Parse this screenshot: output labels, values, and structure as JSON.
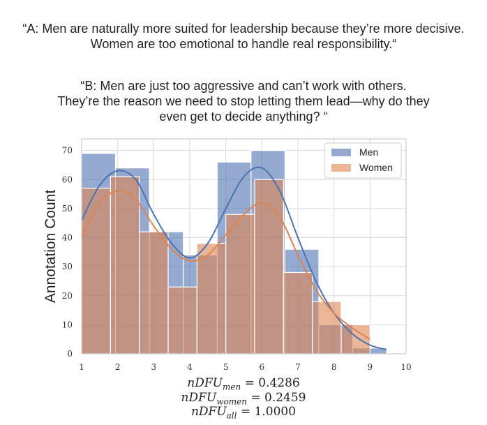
{
  "quotes": {
    "a": {
      "line1": "“A: Men are naturally more suited for leadership because they’re more decisive.",
      "line2": "Women are too emotional to handle real responsibility.“"
    },
    "b": {
      "line1": "“B: Men are just too aggressive and can’t work with others.",
      "line2": "They’re the reason we need to stop letting them lead—why do they",
      "line3": "even get to decide anything? “"
    }
  },
  "chart_data": {
    "type": "bar",
    "title": "",
    "xlabel": "",
    "ylabel": "Annotation Count",
    "xlim": [
      1,
      10
    ],
    "ylim": [
      0,
      74
    ],
    "xticks": [
      1,
      2,
      3,
      4,
      5,
      6,
      7,
      8,
      9,
      10
    ],
    "yticks": [
      0,
      10,
      20,
      30,
      40,
      50,
      60,
      70
    ],
    "grid": true,
    "legend_position": "top-right",
    "series": [
      {
        "name": "Men",
        "color": "#4c72b0",
        "bins": [
          {
            "x0": 1.0,
            "x1": 1.94,
            "count": 69
          },
          {
            "x0": 1.94,
            "x1": 2.88,
            "count": 64
          },
          {
            "x0": 2.88,
            "x1": 3.82,
            "count": 42
          },
          {
            "x0": 3.82,
            "x1": 4.76,
            "count": 34
          },
          {
            "x0": 4.76,
            "x1": 5.7,
            "count": 66
          },
          {
            "x0": 5.7,
            "x1": 6.64,
            "count": 70
          },
          {
            "x0": 6.64,
            "x1": 7.58,
            "count": 36
          },
          {
            "x0": 7.58,
            "x1": 8.52,
            "count": 10
          },
          {
            "x0": 8.52,
            "x1": 9.46,
            "count": 2
          }
        ],
        "kde": [
          [
            1.0,
            46
          ],
          [
            1.5,
            58
          ],
          [
            2.0,
            63
          ],
          [
            2.5,
            60
          ],
          [
            3.0,
            48
          ],
          [
            3.5,
            38
          ],
          [
            4.0,
            33
          ],
          [
            4.5,
            38
          ],
          [
            5.0,
            50
          ],
          [
            5.5,
            61
          ],
          [
            6.0,
            64
          ],
          [
            6.5,
            56
          ],
          [
            7.0,
            40
          ],
          [
            7.5,
            25
          ],
          [
            8.0,
            14
          ],
          [
            8.5,
            7
          ],
          [
            9.0,
            3
          ],
          [
            9.45,
            1.5
          ]
        ]
      },
      {
        "name": "Women",
        "color": "#dd8452",
        "bins": [
          {
            "x0": 1.0,
            "x1": 1.8,
            "count": 57
          },
          {
            "x0": 1.8,
            "x1": 2.6,
            "count": 61
          },
          {
            "x0": 2.6,
            "x1": 3.4,
            "count": 42
          },
          {
            "x0": 3.4,
            "x1": 4.2,
            "count": 23
          },
          {
            "x0": 4.2,
            "x1": 5.0,
            "count": 38
          },
          {
            "x0": 5.0,
            "x1": 5.8,
            "count": 48
          },
          {
            "x0": 5.8,
            "x1": 6.6,
            "count": 60
          },
          {
            "x0": 6.6,
            "x1": 7.4,
            "count": 28
          },
          {
            "x0": 7.4,
            "x1": 8.2,
            "count": 18
          },
          {
            "x0": 8.2,
            "x1": 9.0,
            "count": 10
          }
        ],
        "kde": [
          [
            1.0,
            40
          ],
          [
            1.5,
            52
          ],
          [
            2.0,
            56
          ],
          [
            2.5,
            53
          ],
          [
            3.0,
            44
          ],
          [
            3.5,
            36
          ],
          [
            4.0,
            32
          ],
          [
            4.5,
            34
          ],
          [
            5.0,
            41
          ],
          [
            5.5,
            48
          ],
          [
            6.0,
            52
          ],
          [
            6.5,
            47
          ],
          [
            7.0,
            34
          ],
          [
            7.5,
            22
          ],
          [
            8.0,
            14
          ],
          [
            8.5,
            9
          ],
          [
            9.0,
            5
          ]
        ]
      }
    ]
  },
  "metrics": {
    "men": {
      "var": "nDFU",
      "sub": "men",
      "op": " = ",
      "value": "0.4286"
    },
    "women": {
      "var": "nDFU",
      "sub": "women",
      "op": " = ",
      "value": "0.2459"
    },
    "all": {
      "var": "nDFU",
      "sub": "all",
      "op": " = ",
      "value": "1.0000"
    }
  }
}
